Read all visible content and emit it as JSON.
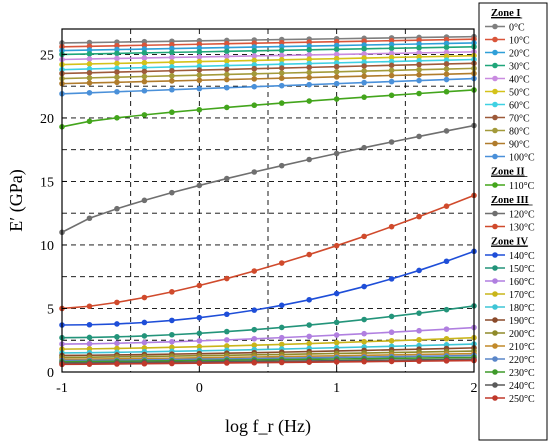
{
  "chart_data": {
    "type": "line",
    "xlabel": "log f_r (Hz)",
    "ylabel": "E′ (GPa)",
    "xlim": [
      -1,
      2
    ],
    "ylim": [
      0,
      27
    ],
    "x_ticks": [
      -1,
      0,
      1,
      2
    ],
    "x_tick_labels": [
      "-1",
      "0",
      "1",
      "2"
    ],
    "y_ticks": [
      0,
      5,
      10,
      15,
      20,
      25
    ],
    "y_tick_labels": [
      "0",
      "5",
      "10",
      "15",
      "20",
      "25"
    ],
    "x_minor_grid": [
      -0.5,
      0.5,
      1.5
    ],
    "grid": true,
    "legend_position": "right",
    "x": [
      -1.0,
      -0.8,
      -0.6,
      -0.4,
      -0.2,
      0.0,
      0.2,
      0.4,
      0.6,
      0.8,
      1.0,
      1.2,
      1.4,
      1.6,
      1.8,
      2.0
    ],
    "zones": [
      {
        "label": "Zone I",
        "series_indices": [
          0,
          1,
          2,
          3,
          4,
          5,
          6,
          7,
          8,
          9,
          10
        ]
      },
      {
        "label": "Zone II",
        "series_indices": [
          11
        ]
      },
      {
        "label": "Zone III",
        "series_indices": [
          12,
          13
        ]
      },
      {
        "label": "Zone IV",
        "series_indices": [
          14,
          15,
          16,
          17,
          18,
          19,
          20,
          21,
          22,
          23,
          24,
          25
        ]
      }
    ],
    "series": [
      {
        "name": "0°C",
        "color": "#7f7f7f",
        "start": 25.9,
        "end": 26.4,
        "shape": 1.0
      },
      {
        "name": "10°C",
        "color": "#d9553a",
        "start": 25.6,
        "end": 26.2,
        "shape": 1.0
      },
      {
        "name": "20°C",
        "color": "#2f9fd8",
        "start": 25.3,
        "end": 25.9,
        "shape": 1.0
      },
      {
        "name": "30°C",
        "color": "#1fa67a",
        "start": 25.0,
        "end": 25.6,
        "shape": 1.0
      },
      {
        "name": "40°C",
        "color": "#c98be0",
        "start": 24.6,
        "end": 25.2,
        "shape": 1.0
      },
      {
        "name": "50°C",
        "color": "#d4c21a",
        "start": 24.2,
        "end": 24.9,
        "shape": 1.0
      },
      {
        "name": "60°C",
        "color": "#3fd1e3",
        "start": 23.8,
        "end": 24.6,
        "shape": 1.0
      },
      {
        "name": "70°C",
        "color": "#9d5a3a",
        "start": 23.5,
        "end": 24.3,
        "shape": 1.0
      },
      {
        "name": "80°C",
        "color": "#a39a3a",
        "start": 23.1,
        "end": 23.9,
        "shape": 1.0
      },
      {
        "name": "90°C",
        "color": "#b07c2c",
        "start": 22.7,
        "end": 23.5,
        "shape": 1.0
      },
      {
        "name": "100°C",
        "color": "#4a90d9",
        "start": 21.9,
        "end": 23.1,
        "shape": 1.0
      },
      {
        "name": "110°C",
        "color": "#43a51c",
        "start": 19.3,
        "end": 22.2,
        "shape": 0.7
      },
      {
        "name": "120°C",
        "color": "#6f6f6f",
        "start": 11.0,
        "end": 19.4,
        "shape": 0.75
      },
      {
        "name": "130°C",
        "color": "#d04a2c",
        "start": 5.0,
        "end": 13.9,
        "shape": 1.45
      },
      {
        "name": "140°C",
        "color": "#1e4ed8",
        "start": 3.7,
        "end": 9.5,
        "shape": 2.1
      },
      {
        "name": "150°C",
        "color": "#23947a",
        "start": 2.7,
        "end": 5.2,
        "shape": 1.8
      },
      {
        "name": "160°C",
        "color": "#b07fe0",
        "start": 2.2,
        "end": 3.5,
        "shape": 1.5
      },
      {
        "name": "170°C",
        "color": "#c9b51a",
        "start": 1.8,
        "end": 2.7,
        "shape": 1.4
      },
      {
        "name": "180°C",
        "color": "#3ec5d6",
        "start": 1.5,
        "end": 2.2,
        "shape": 1.3
      },
      {
        "name": "190°C",
        "color": "#8a4a2a",
        "start": 1.3,
        "end": 1.9,
        "shape": 1.3
      },
      {
        "name": "200°C",
        "color": "#8f8a2a",
        "start": 1.15,
        "end": 1.65,
        "shape": 1.2
      },
      {
        "name": "210°C",
        "color": "#c28a2a",
        "start": 1.0,
        "end": 1.45,
        "shape": 1.2
      },
      {
        "name": "220°C",
        "color": "#5a86c9",
        "start": 0.9,
        "end": 1.3,
        "shape": 1.2
      },
      {
        "name": "230°C",
        "color": "#3f9a2a",
        "start": 0.8,
        "end": 1.15,
        "shape": 1.1
      },
      {
        "name": "240°C",
        "color": "#5a5a5a",
        "start": 0.7,
        "end": 1.0,
        "shape": 1.1
      },
      {
        "name": "250°C",
        "color": "#c0392b",
        "start": 0.6,
        "end": 0.9,
        "shape": 1.1
      }
    ]
  }
}
